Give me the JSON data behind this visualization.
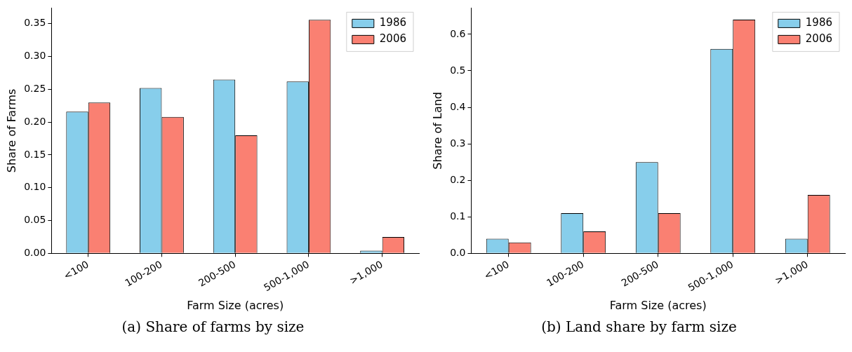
{
  "chart_data": [
    {
      "type": "bar",
      "title": "(a) Share of farms by size",
      "xlabel": "Farm Size (acres)",
      "ylabel": "Share of Farms",
      "categories": [
        "<100",
        "100-200",
        "200-500",
        "500-1,000",
        ">1,000"
      ],
      "series": [
        {
          "name": "1986",
          "color": "#87ceeb",
          "values": [
            0.216,
            0.252,
            0.265,
            0.262,
            0.004
          ]
        },
        {
          "name": "2006",
          "color": "#fa8072",
          "values": [
            0.23,
            0.208,
            0.18,
            0.356,
            0.025
          ]
        }
      ],
      "ylim": [
        0,
        0.374
      ],
      "yticks": [
        {
          "value": 0,
          "label": "0.00"
        },
        {
          "value": 0.05,
          "label": "0.05"
        },
        {
          "value": 0.1,
          "label": "0.10"
        },
        {
          "value": 0.15,
          "label": "0.15"
        },
        {
          "value": 0.2,
          "label": "0.20"
        },
        {
          "value": 0.25,
          "label": "0.25"
        },
        {
          "value": 0.3,
          "label": "0.30"
        },
        {
          "value": 0.35,
          "label": "0.35"
        }
      ],
      "grid": false,
      "legend": "top right"
    },
    {
      "type": "bar",
      "title": "(b) Land share by farm size",
      "xlabel": "Farm Size (acres)",
      "ylabel": "Share of Land",
      "categories": [
        "<100",
        "100-200",
        "200-500",
        "500-1,000",
        ">1,000"
      ],
      "series": [
        {
          "name": "1986",
          "color": "#87ceeb",
          "values": [
            0.04,
            0.11,
            0.25,
            0.56,
            0.04
          ]
        },
        {
          "name": "2006",
          "color": "#fa8072",
          "values": [
            0.03,
            0.06,
            0.11,
            0.64,
            0.16
          ]
        }
      ],
      "ylim": [
        0,
        0.672
      ],
      "yticks": [
        {
          "value": 0,
          "label": "0.0"
        },
        {
          "value": 0.1,
          "label": "0.1"
        },
        {
          "value": 0.2,
          "label": "0.2"
        },
        {
          "value": 0.3,
          "label": "0.3"
        },
        {
          "value": 0.4,
          "label": "0.4"
        },
        {
          "value": 0.5,
          "label": "0.5"
        },
        {
          "value": 0.6,
          "label": "0.6"
        }
      ],
      "grid": false,
      "legend": "top right"
    }
  ]
}
